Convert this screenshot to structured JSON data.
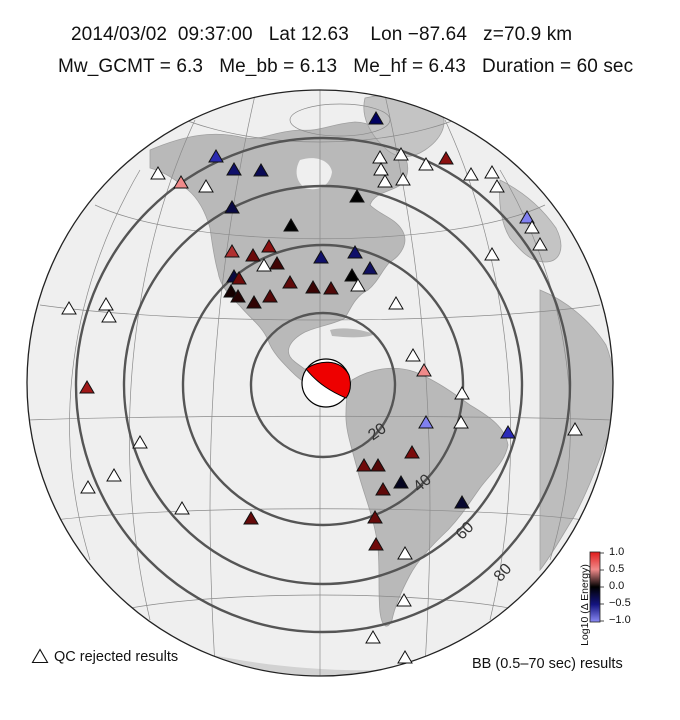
{
  "header": {
    "line1": "2014/03/02  09:37:00   Lat 12.63    Lon −87.64   z=70.9 km",
    "line2": "Mw_GCMT = 6.3   Me_bb = 6.13   Me_hf = 6.43   Duration = 60 sec"
  },
  "map": {
    "projection": "orthographic",
    "center": {
      "lat": 12.63,
      "lon": -87.64
    },
    "distance_rings_deg": [
      20,
      40,
      60,
      80
    ],
    "ring_labels": [
      "20",
      "40",
      "60",
      "80"
    ],
    "focal_mechanism_colors": {
      "compressional": "#ee0000",
      "dilatational": "#ffffff"
    }
  },
  "legend": {
    "qc_rejected_label": "QC rejected results",
    "results_label": "BB (0.5–70 sec) results"
  },
  "colorbar": {
    "title": "Log10 (Δ Energy)",
    "ticks": [
      "1.0",
      "0.5",
      "0.0",
      "−0.5",
      "−1.0"
    ],
    "colors": {
      "high": "#e01b1b",
      "mid": "#000000",
      "low": "#3a3ae6"
    }
  }
}
